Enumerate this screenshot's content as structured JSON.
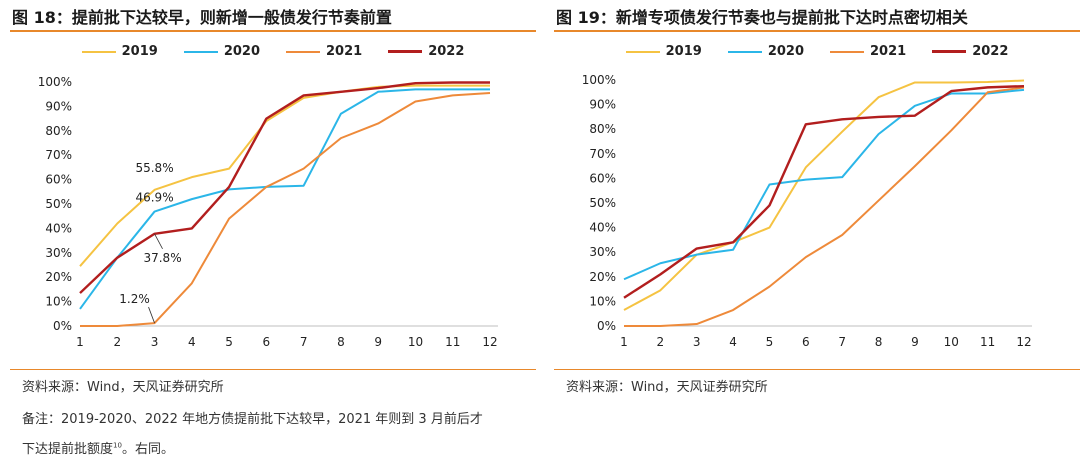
{
  "colors": {
    "rule": "#E8882B",
    "series_2019": "#F5C342",
    "series_2020": "#2BB6E8",
    "series_2021": "#EE8A3A",
    "series_2022": "#B21E1E"
  },
  "left": {
    "title": "图 18：提前批下达较早，则新增一般债发行节奏前置",
    "source": "资料来源：Wind，天风证券研究所",
    "note_line1": "备注：2019-2020、2022 年地方债提前批下达较早，2021 年则到 3 月前后才",
    "note_line2_main": "下达提前批额度",
    "note_line2_sup": "10",
    "note_line2_end": "。右同。"
  },
  "right": {
    "title": "图 19：新增专项债发行节奏也与提前批下达时点密切相关",
    "source": "资料来源：Wind，天风证券研究所"
  },
  "chart_data": [
    {
      "type": "line",
      "x": [
        1,
        2,
        3,
        4,
        5,
        6,
        7,
        8,
        9,
        10,
        11,
        12
      ],
      "xlim": [
        1,
        12
      ],
      "ylim": [
        0,
        100
      ],
      "yticks": [
        "0%",
        "10%",
        "20%",
        "30%",
        "40%",
        "50%",
        "60%",
        "70%",
        "80%",
        "90%",
        "100%"
      ],
      "legend_position": "top-center",
      "grid": false,
      "series": [
        {
          "name": "2019",
          "color_key": "series_2019",
          "values": [
            24.5,
            42,
            55.8,
            61,
            64.5,
            84,
            93.5,
            96,
            98,
            98.5,
            98.5,
            98.5
          ]
        },
        {
          "name": "2020",
          "color_key": "series_2020",
          "values": [
            7,
            28,
            46.9,
            52,
            56,
            57,
            57.5,
            87,
            96,
            97,
            97,
            97
          ]
        },
        {
          "name": "2021",
          "color_key": "series_2021",
          "values": [
            0,
            0,
            1.2,
            17.5,
            44,
            57,
            64.5,
            77,
            83,
            92,
            94.5,
            95.5
          ]
        },
        {
          "name": "2022",
          "color_key": "series_2022",
          "values": [
            13.5,
            28,
            37.8,
            40,
            57,
            85,
            94.5,
            96,
            97.5,
            99.5,
            99.8,
            99.8
          ]
        }
      ],
      "annotations": [
        {
          "text": "55.8%",
          "series": "2019",
          "x": 3,
          "y": 55.8
        },
        {
          "text": "46.9%",
          "series": "2020",
          "x": 3,
          "y": 46.9
        },
        {
          "text": "37.8%",
          "series": "2022",
          "x": 3,
          "y": 37.8
        },
        {
          "text": "1.2%",
          "series": "2021",
          "x": 3,
          "y": 1.2
        }
      ]
    },
    {
      "type": "line",
      "x": [
        1,
        2,
        3,
        4,
        5,
        6,
        7,
        8,
        9,
        10,
        11,
        12
      ],
      "xlim": [
        1,
        12
      ],
      "ylim": [
        0,
        100
      ],
      "yticks": [
        "0%",
        "10%",
        "20%",
        "30%",
        "40%",
        "50%",
        "60%",
        "70%",
        "80%",
        "90%",
        "100%"
      ],
      "legend_position": "top-center",
      "grid": false,
      "series": [
        {
          "name": "2019",
          "color_key": "series_2019",
          "values": [
            6.5,
            14.5,
            29,
            34,
            40,
            64.5,
            79,
            93,
            99,
            99,
            99.2,
            99.8
          ]
        },
        {
          "name": "2020",
          "color_key": "series_2020",
          "values": [
            19,
            25.5,
            29,
            31,
            57.5,
            59.5,
            60.5,
            78,
            89.5,
            94.5,
            94.5,
            96
          ]
        },
        {
          "name": "2021",
          "color_key": "series_2021",
          "values": [
            0,
            0,
            0.8,
            6.5,
            16,
            28,
            37,
            51,
            65,
            79.5,
            95,
            97
          ]
        },
        {
          "name": "2022",
          "color_key": "series_2022",
          "values": [
            11.5,
            21,
            31.5,
            34,
            49,
            82,
            84,
            85,
            85.5,
            95.5,
            97,
            97.5
          ]
        }
      ],
      "annotations": []
    }
  ]
}
